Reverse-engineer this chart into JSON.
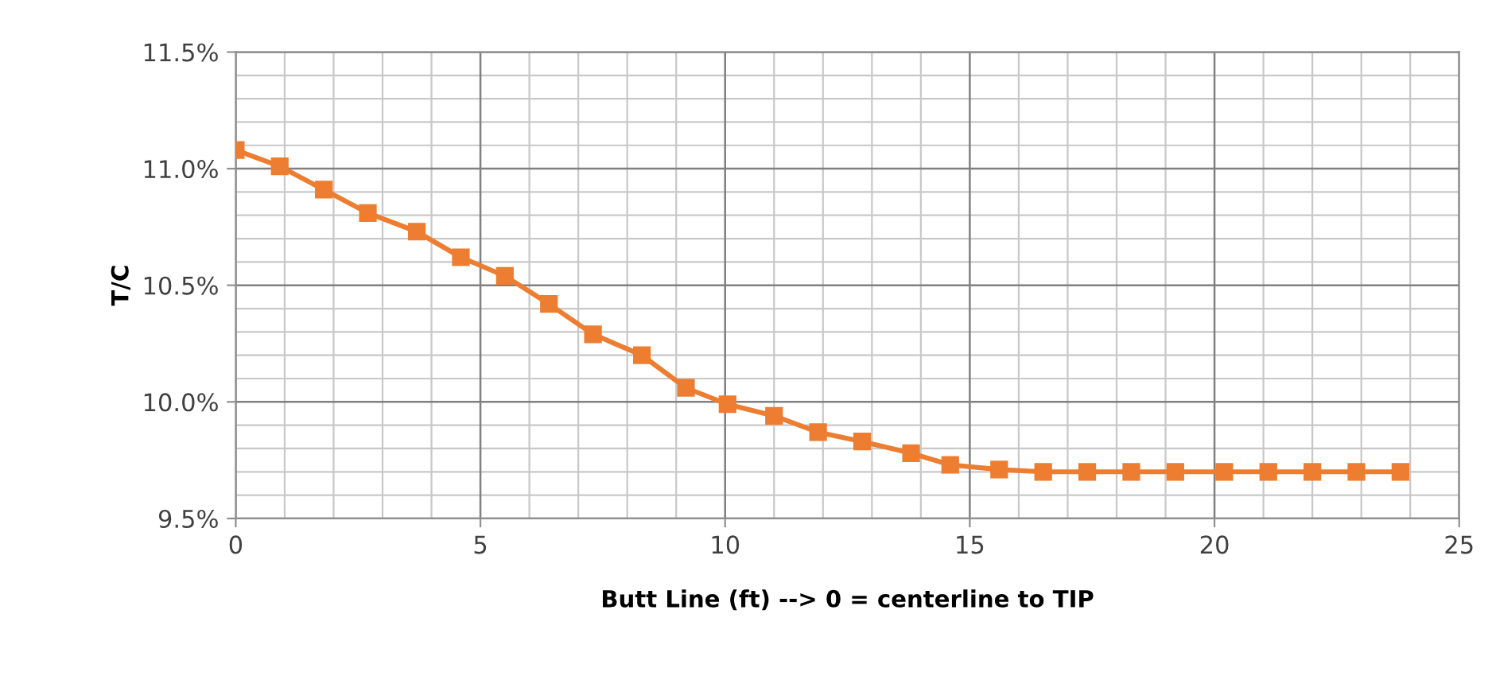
{
  "chart_data": {
    "type": "line",
    "xlabel": "Butt Line (ft) --> 0 = centerline to TIP",
    "ylabel": "T/C",
    "x": [
      0,
      0.9,
      1.8,
      2.7,
      3.7,
      4.6,
      5.5,
      6.4,
      7.3,
      8.3,
      9.2,
      10.05,
      11.0,
      11.9,
      12.8,
      13.8,
      14.6,
      15.6,
      16.5,
      17.4,
      18.3,
      19.2,
      20.2,
      21.1,
      22.0,
      22.9,
      23.8
    ],
    "series": [
      {
        "color": "#ed7d31",
        "values": [
          11.08,
          11.01,
          10.91,
          10.81,
          10.73,
          10.62,
          10.54,
          10.42,
          10.29,
          10.2,
          10.06,
          9.99,
          9.94,
          9.87,
          9.83,
          9.78,
          9.73,
          9.71,
          9.7,
          9.7,
          9.7,
          9.7,
          9.7,
          9.7,
          9.7,
          9.7,
          9.7
        ]
      }
    ],
    "xlim": [
      0,
      25
    ],
    "xticks": [
      0,
      5,
      10,
      15,
      20,
      25
    ],
    "ylim": [
      9.5,
      11.5
    ],
    "yticks": [
      {
        "value": 9.5,
        "label": "9.5%"
      },
      {
        "value": 10.0,
        "label": "10.0%"
      },
      {
        "value": 10.5,
        "label": "10.5%"
      },
      {
        "value": 11.0,
        "label": "11.0%"
      },
      {
        "value": 11.5,
        "label": "11.5%"
      }
    ],
    "grid": true,
    "marker": "square",
    "line_style": "solid",
    "legend": false
  }
}
